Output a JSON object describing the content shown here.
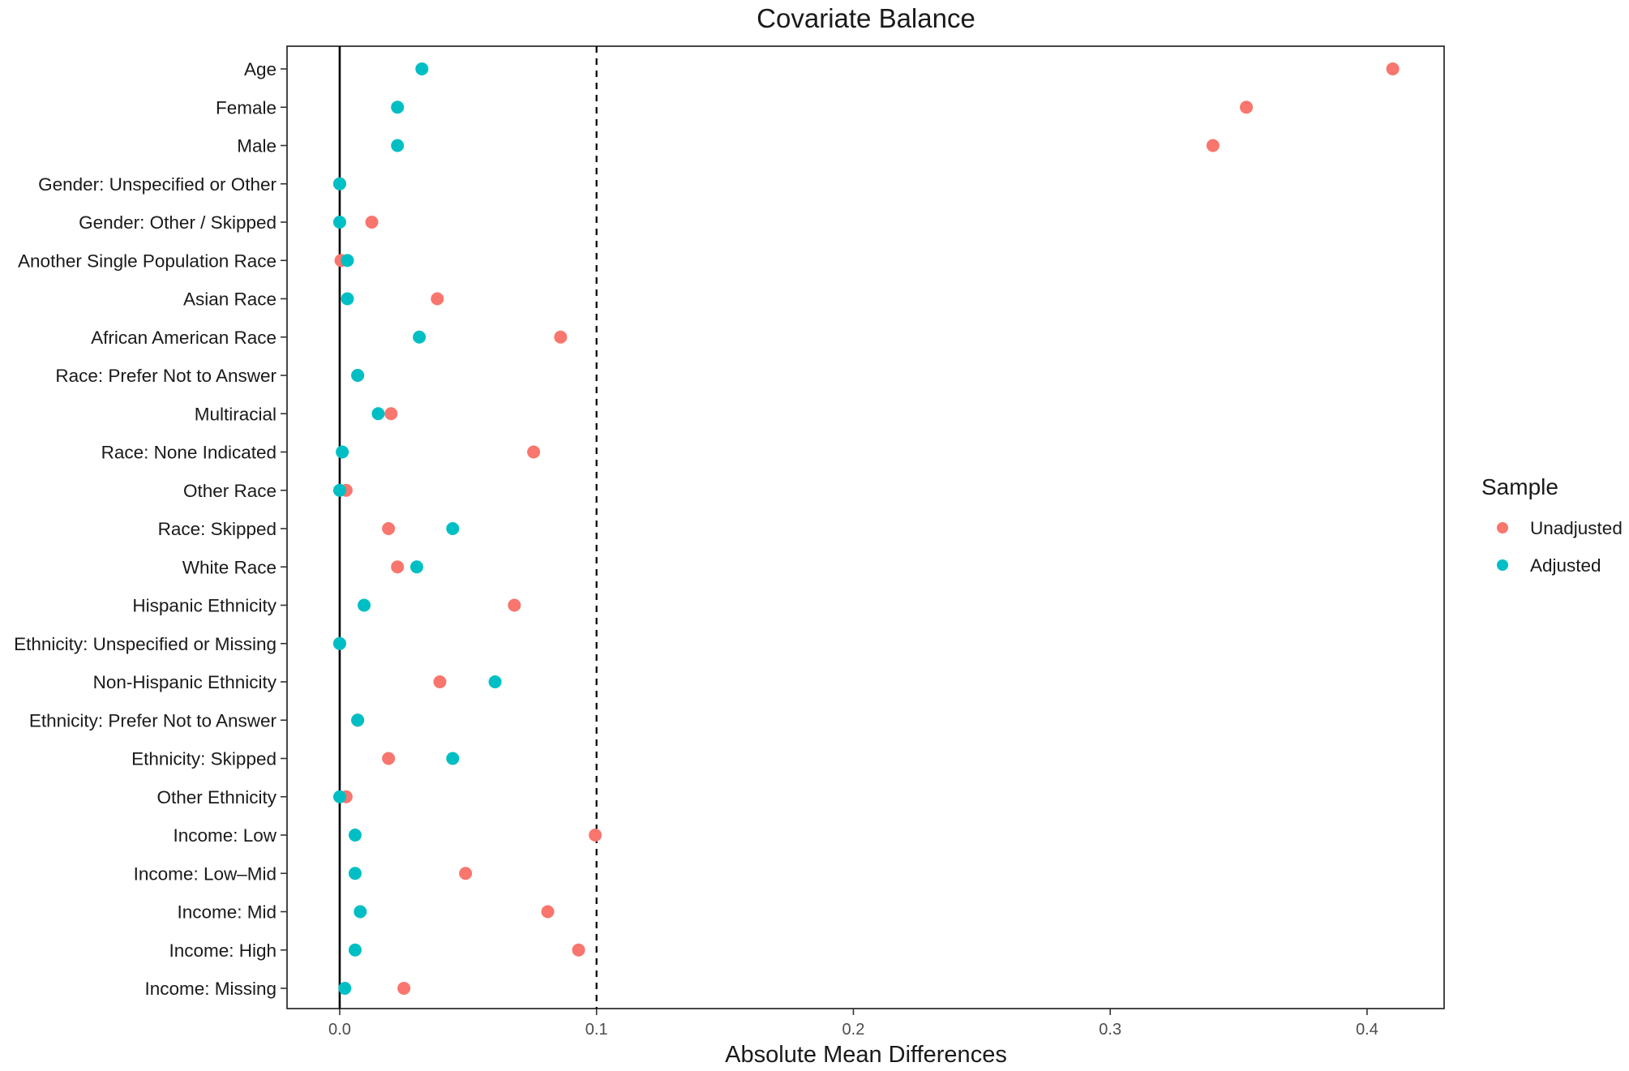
{
  "chart_data": {
    "type": "scatter",
    "title": "Covariate Balance",
    "xlabel": "Absolute Mean Differences",
    "ylabel": "",
    "xlim": [
      -0.0205,
      0.43
    ],
    "xticks": [
      0.0,
      0.1,
      0.2,
      0.3,
      0.4
    ],
    "xtick_labels": [
      "0.0",
      "0.1",
      "0.2",
      "0.3",
      "0.4"
    ],
    "reference_lines": [
      {
        "x": 0.0,
        "style": "solid"
      },
      {
        "x": 0.1,
        "style": "dashed"
      }
    ],
    "grid": false,
    "legend": {
      "title": "Sample",
      "position": "right"
    },
    "categories": [
      "Age",
      "Female",
      "Male",
      "Gender: Unspecified or Other",
      "Gender: Other / Skipped",
      "Another Single Population Race",
      "Asian Race",
      "African American Race",
      "Race: Prefer Not to Answer",
      "Multiracial",
      "Race: None Indicated",
      "Other Race",
      "Race: Skipped",
      "White Race",
      "Hispanic Ethnicity",
      "Ethnicity: Unspecified or Missing",
      "Non-Hispanic Ethnicity",
      "Ethnicity: Prefer Not to Answer",
      "Ethnicity: Skipped",
      "Other Ethnicity",
      "Income: Low",
      "Income: Low–Mid",
      "Income: Mid",
      "Income: High",
      "Income: Missing"
    ],
    "series": [
      {
        "name": "Unadjusted",
        "color": "#F8766D",
        "values": [
          0.41,
          0.353,
          0.34,
          0.0,
          0.0125,
          0.0005,
          0.038,
          0.086,
          0.007,
          0.02,
          0.0755,
          0.0025,
          0.019,
          0.0225,
          0.068,
          0.0,
          0.039,
          0.007,
          0.019,
          0.0025,
          0.0995,
          0.049,
          0.081,
          0.093,
          0.025
        ]
      },
      {
        "name": "Adjusted",
        "color": "#00BFC4",
        "values": [
          0.032,
          0.0225,
          0.0225,
          0.0,
          0.0,
          0.003,
          0.003,
          0.031,
          0.007,
          0.015,
          0.001,
          0.0,
          0.044,
          0.03,
          0.0095,
          0.0,
          0.0605,
          0.007,
          0.044,
          0.0,
          0.006,
          0.006,
          0.008,
          0.006,
          0.002
        ]
      }
    ]
  }
}
